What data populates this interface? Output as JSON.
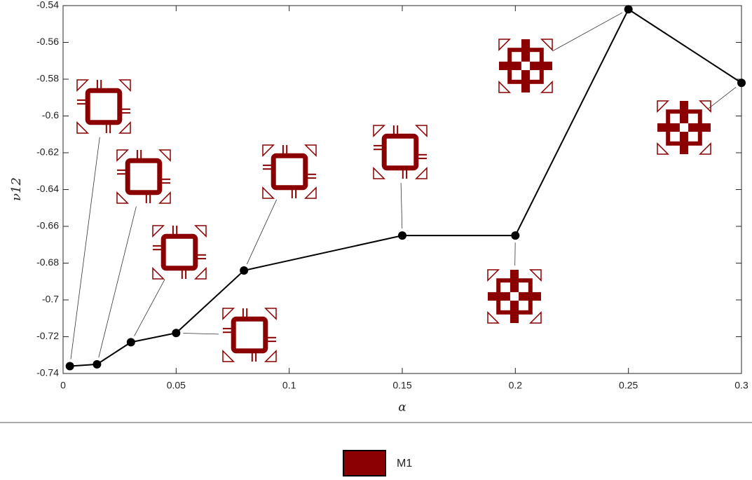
{
  "chart_data": {
    "type": "line",
    "xlabel": "α",
    "ylabel": "ν12",
    "x": [
      0.003,
      0.015,
      0.03,
      0.05,
      0.08,
      0.15,
      0.2,
      0.25,
      0.3
    ],
    "series": [
      {
        "color": "#000000",
        "values": [
          -0.736,
          -0.735,
          -0.723,
          -0.718,
          -0.684,
          -0.665,
          -0.665,
          -0.542,
          -0.582
        ]
      }
    ],
    "xlim": [
      0,
      0.3
    ],
    "xticks": [
      0,
      0.05,
      0.1,
      0.15,
      0.2,
      0.25,
      0.3
    ],
    "ylim": [
      -0.74,
      -0.54
    ],
    "yticks": [
      -0.74,
      -0.72,
      -0.7,
      -0.68,
      -0.66,
      -0.64,
      -0.62,
      -0.6,
      -0.58,
      -0.56,
      -0.54
    ],
    "grid": false,
    "legend": {
      "label": "M1",
      "color": "#8b0000",
      "position": "bottom"
    }
  }
}
